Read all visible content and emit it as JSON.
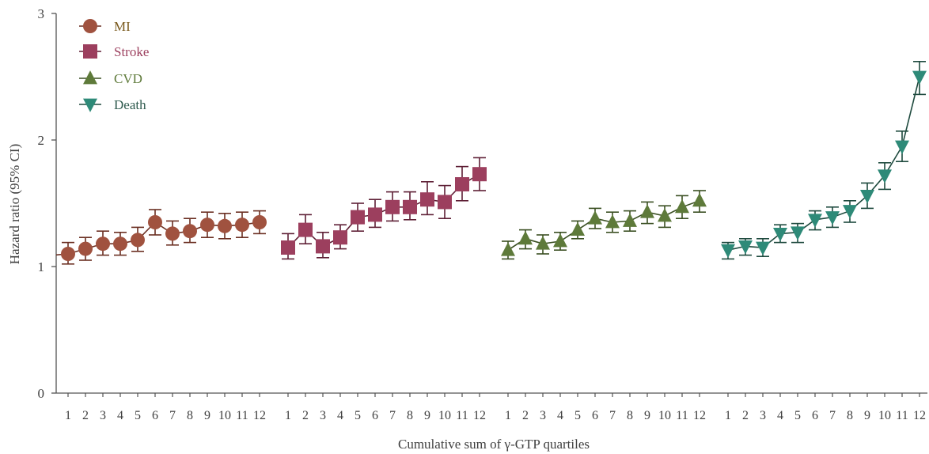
{
  "chart_data": {
    "type": "line",
    "title": "",
    "xlabel": "Cumulative sum of γ-GTP quartiles",
    "ylabel": "Hazard ratio (95% CI)",
    "ylim": [
      0,
      3
    ],
    "y_ticks": [
      "0",
      "1",
      "2",
      "3"
    ],
    "grid": false,
    "legend_position": "top-left",
    "categories": [
      "1",
      "2",
      "3",
      "4",
      "5",
      "6",
      "7",
      "8",
      "9",
      "10",
      "11",
      "12"
    ],
    "series": [
      {
        "name": "MI",
        "marker": "circle",
        "color": "#A0523F",
        "line_color": "#6B2F22",
        "label_color": "#7A5A1E",
        "values": [
          1.1,
          1.14,
          1.18,
          1.18,
          1.21,
          1.35,
          1.26,
          1.28,
          1.33,
          1.32,
          1.33,
          1.35
        ],
        "lower": [
          1.02,
          1.05,
          1.09,
          1.09,
          1.12,
          1.25,
          1.17,
          1.19,
          1.23,
          1.22,
          1.23,
          1.26
        ],
        "upper": [
          1.19,
          1.23,
          1.28,
          1.27,
          1.31,
          1.45,
          1.36,
          1.38,
          1.43,
          1.42,
          1.43,
          1.44
        ]
      },
      {
        "name": "Stroke",
        "marker": "square",
        "color": "#9C3F5E",
        "line_color": "#5E1F35",
        "label_color": "#9C3F5E",
        "values": [
          1.15,
          1.29,
          1.16,
          1.23,
          1.39,
          1.41,
          1.47,
          1.47,
          1.53,
          1.51,
          1.65,
          1.73
        ],
        "lower": [
          1.06,
          1.18,
          1.07,
          1.14,
          1.28,
          1.31,
          1.36,
          1.37,
          1.41,
          1.38,
          1.52,
          1.6
        ],
        "upper": [
          1.26,
          1.41,
          1.27,
          1.33,
          1.5,
          1.53,
          1.59,
          1.59,
          1.67,
          1.64,
          1.79,
          1.86
        ]
      },
      {
        "name": "CVD",
        "marker": "triangle-up",
        "color": "#5E7A3A",
        "line_color": "#3A4F22",
        "label_color": "#5E7A3A",
        "values": [
          1.13,
          1.22,
          1.18,
          1.2,
          1.29,
          1.38,
          1.35,
          1.36,
          1.43,
          1.4,
          1.47,
          1.52
        ],
        "lower": [
          1.06,
          1.14,
          1.1,
          1.13,
          1.22,
          1.3,
          1.27,
          1.28,
          1.34,
          1.31,
          1.38,
          1.43
        ],
        "upper": [
          1.2,
          1.29,
          1.25,
          1.27,
          1.36,
          1.46,
          1.43,
          1.44,
          1.51,
          1.48,
          1.56,
          1.6
        ]
      },
      {
        "name": "Death",
        "marker": "triangle-down",
        "color": "#2E8A78",
        "line_color": "#1E4A3E",
        "label_color": "#2E5A4E",
        "values": [
          1.13,
          1.16,
          1.15,
          1.26,
          1.27,
          1.37,
          1.39,
          1.44,
          1.56,
          1.72,
          1.95,
          2.5
        ],
        "lower": [
          1.06,
          1.09,
          1.08,
          1.19,
          1.19,
          1.29,
          1.31,
          1.35,
          1.46,
          1.61,
          1.83,
          2.36
        ],
        "upper": [
          1.19,
          1.22,
          1.22,
          1.33,
          1.34,
          1.44,
          1.47,
          1.52,
          1.66,
          1.82,
          2.07,
          2.62
        ]
      }
    ]
  }
}
